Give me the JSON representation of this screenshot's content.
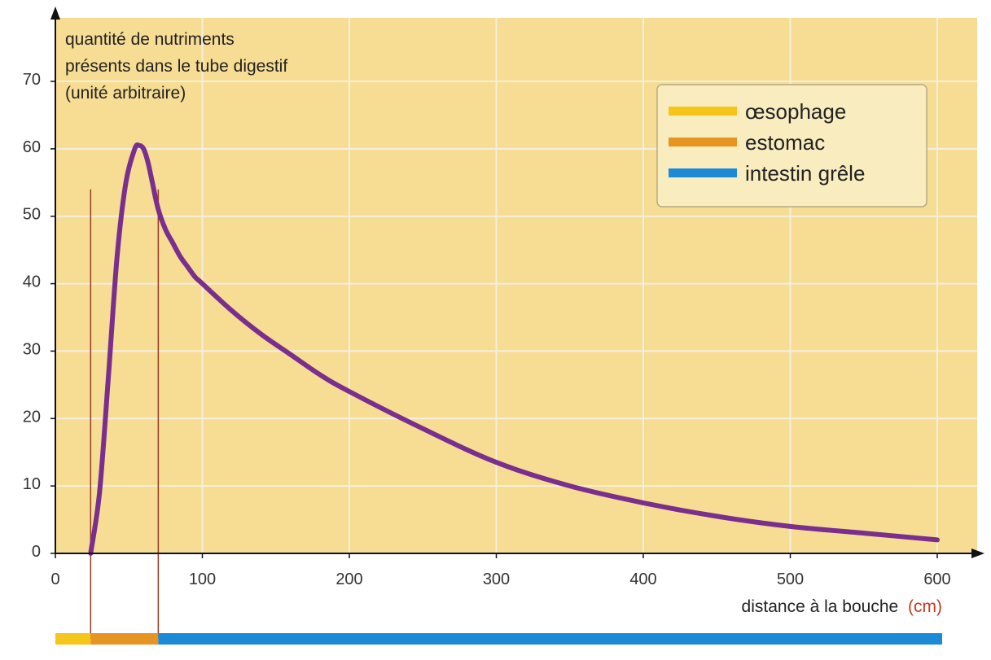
{
  "chart_data": {
    "type": "line",
    "title": "",
    "ylabel": {
      "line1": "quantité de nutriments",
      "line2": "présents dans le tube digestif",
      "unit": "(unité arbitraire)"
    },
    "xlabel": {
      "text": "distance à la bouche",
      "unit": "(cm)"
    },
    "xlim": [
      0,
      600
    ],
    "ylim": [
      0,
      70
    ],
    "x_ticks": [
      0,
      100,
      200,
      300,
      400,
      500,
      600
    ],
    "y_ticks": [
      0,
      10,
      20,
      30,
      40,
      50,
      60,
      70
    ],
    "x_tick_labels": [
      "0",
      "100",
      "200",
      "300",
      "400",
      "500",
      "600"
    ],
    "y_tick_labels": [
      "0",
      "10",
      "20",
      "30",
      "40",
      "50",
      "60",
      "70"
    ],
    "grid": true,
    "legend_position": "top-right",
    "series": [
      {
        "color": "#7a2e8e",
        "x": [
          24,
          30,
          36,
          42,
          48,
          54,
          57,
          60,
          63,
          66,
          70,
          75,
          80,
          85,
          90,
          95,
          100,
          120,
          140,
          160,
          180,
          200,
          250,
          300,
          350,
          400,
          450,
          500,
          550,
          600
        ],
        "y": [
          0,
          9,
          26,
          44,
          55,
          60,
          60.5,
          60,
          58,
          55,
          51,
          48,
          46,
          44,
          42.5,
          41,
          40,
          36,
          32.5,
          29.5,
          26.5,
          24,
          18.5,
          13.5,
          10,
          7.5,
          5.5,
          4,
          3,
          2
        ]
      }
    ],
    "segments": [
      {
        "label": "œsophage",
        "color": "#f6c519",
        "x_start": 0,
        "x_end": 24
      },
      {
        "label": "estomac",
        "color": "#e69422",
        "x_start": 24,
        "x_end": 70
      },
      {
        "label": "intestin grêle",
        "color": "#1d8ad5",
        "x_start": 70,
        "x_end": 600
      }
    ],
    "boundary_lines_x": [
      24,
      70
    ],
    "colors": {
      "plot_background": "#f6dd93",
      "grid": "#f3f0e0",
      "axis": "#111111",
      "unit_label": "#c33a1f",
      "boundary_line": "#9a3a22"
    }
  }
}
